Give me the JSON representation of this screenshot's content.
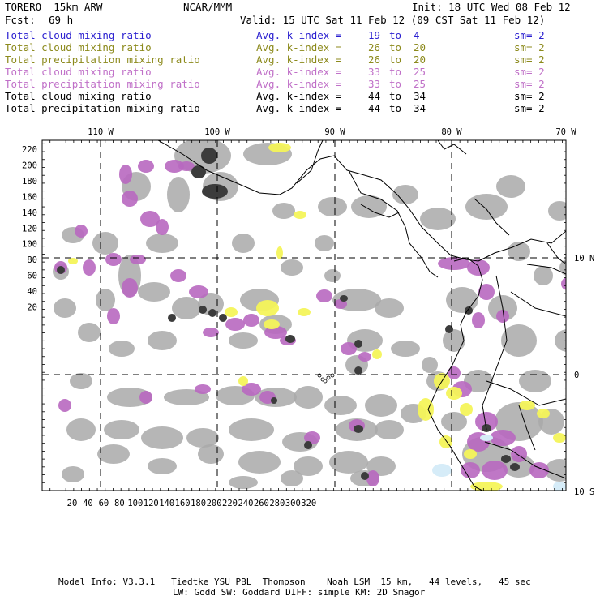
{
  "header": {
    "model": "TORERO  15km ARW",
    "org": "NCAR/MMM",
    "init": "Init: 18 UTC Wed 08 Feb 12",
    "fcst_label": "Fcst:",
    "fcst_value": "69 h",
    "valid": "Valid: 15 UTC Sat 11 Feb 12 (09 CST Sat 11 Feb 12)"
  },
  "legend": [
    {
      "field": "Total cloud mixing ratio",
      "kindex": "Avg. k-index =",
      "from": "19",
      "to_word": "to",
      "to": "4",
      "sm": "sm= 2",
      "color": "#2a1fd0"
    },
    {
      "field": "Total cloud mixing ratio",
      "kindex": "Avg. k-index =",
      "from": "26",
      "to_word": "to",
      "to": "20",
      "sm": "sm= 2",
      "color": "#8c8a1c"
    },
    {
      "field": "Total precipitation mixing ratio",
      "kindex": "Avg. k-index =",
      "from": "26",
      "to_word": "to",
      "to": "20",
      "sm": "sm= 2",
      "color": "#8c8a1c"
    },
    {
      "field": "Total cloud mixing ratio",
      "kindex": "Avg. k-index =",
      "from": "33",
      "to_word": "to",
      "to": "25",
      "sm": "sm= 2",
      "color": "#c070c8"
    },
    {
      "field": "Total precipitation mixing ratio",
      "kindex": "Avg. k-index =",
      "from": "33",
      "to_word": "to",
      "to": "25",
      "sm": "sm= 2",
      "color": "#c070c8"
    },
    {
      "field": "Total cloud mixing ratio",
      "kindex": "Avg. k-index =",
      "from": "44",
      "to_word": "to",
      "to": "34",
      "sm": "sm= 2",
      "color": "#000000"
    },
    {
      "field": "Total precipitation mixing ratio",
      "kindex": "Avg. k-index =",
      "from": "44",
      "to_word": "to",
      "to": "34",
      "sm": "sm= 2",
      "color": "#000000"
    }
  ],
  "map": {
    "lon_labels": [
      "110 W",
      "100 W",
      "90 W",
      "80 W",
      "70 W"
    ],
    "lat_labels": [
      "10 N",
      "0",
      "10 S"
    ],
    "y_ticks": [
      "220",
      "200",
      "180",
      "160",
      "140",
      "120",
      "100",
      "80",
      "60",
      "40",
      "20"
    ],
    "x_ticks": [
      "20",
      "40",
      "60",
      "80",
      "100",
      "120",
      "140",
      "160",
      "180",
      "200",
      "220",
      "240",
      "260",
      "280",
      "300",
      "320"
    ],
    "colors": {
      "cloud_gray": "#a9a9a9",
      "dark_core": "#3c3c3c",
      "purple": "#b868c0",
      "yellow": "#f4f45a",
      "light_blue": "#d6ecf8",
      "coast": "#000000"
    }
  },
  "footer": {
    "line1": "Model Info: V3.3.1   Tiedtke YSU PBL  Thompson    Noah LSM  15 km,   44 levels,   45 sec",
    "line2": "LW: Godd SW: Goddard DIFF: simple KM: 2D Smagor"
  }
}
